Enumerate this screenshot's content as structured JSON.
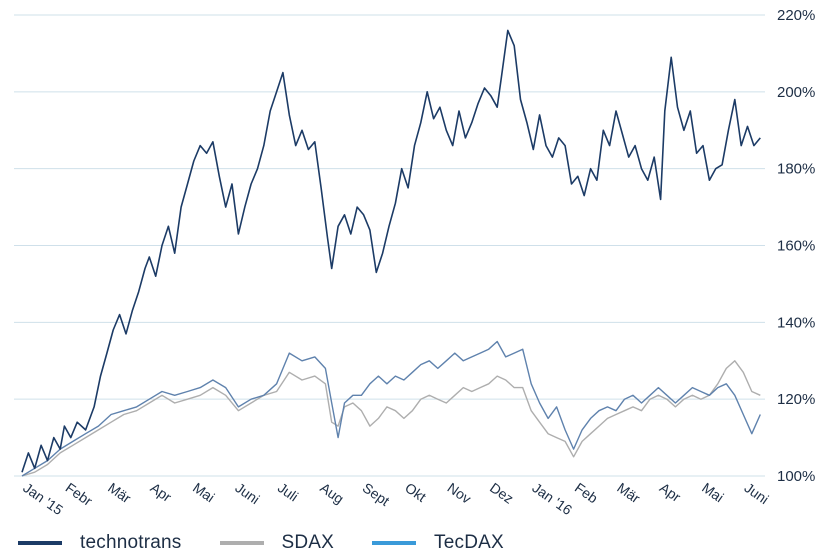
{
  "chart_data": {
    "type": "line",
    "y_axis": {
      "ticks": [
        "100%",
        "120%",
        "140%",
        "160%",
        "180%",
        "200%",
        "220%"
      ],
      "ylim": [
        100,
        220
      ],
      "position": "right",
      "grid": true
    },
    "x_axis": {
      "ticks": [
        "Jan '15",
        "Febr",
        "Mär",
        "Apr",
        "Mai",
        "Juni",
        "Juli",
        "Aug",
        "Sept",
        "Okt",
        "Nov",
        "Dez",
        "Jan '16",
        "Feb",
        "Mär",
        "Apr",
        "Mai",
        "Juni"
      ],
      "label_rotation": "rotated"
    },
    "legend": {
      "placement": "bottom-left"
    },
    "series": [
      {
        "name": "technotrans",
        "color": "#1c3b66",
        "points": [
          [
            0,
            101
          ],
          [
            0.15,
            106
          ],
          [
            0.3,
            102
          ],
          [
            0.45,
            108
          ],
          [
            0.6,
            104
          ],
          [
            0.75,
            110
          ],
          [
            0.9,
            107
          ],
          [
            1.0,
            113
          ],
          [
            1.15,
            110
          ],
          [
            1.3,
            114
          ],
          [
            1.5,
            112
          ],
          [
            1.7,
            118
          ],
          [
            1.85,
            126
          ],
          [
            2.0,
            132
          ],
          [
            2.15,
            138
          ],
          [
            2.3,
            142
          ],
          [
            2.45,
            137
          ],
          [
            2.6,
            143
          ],
          [
            2.75,
            148
          ],
          [
            2.9,
            154
          ],
          [
            3.0,
            157
          ],
          [
            3.15,
            152
          ],
          [
            3.3,
            160
          ],
          [
            3.45,
            165
          ],
          [
            3.6,
            158
          ],
          [
            3.75,
            170
          ],
          [
            3.9,
            176
          ],
          [
            4.05,
            182
          ],
          [
            4.2,
            186
          ],
          [
            4.35,
            184
          ],
          [
            4.5,
            187
          ],
          [
            4.65,
            178
          ],
          [
            4.8,
            170
          ],
          [
            4.95,
            176
          ],
          [
            5.1,
            163
          ],
          [
            5.25,
            170
          ],
          [
            5.4,
            176
          ],
          [
            5.55,
            180
          ],
          [
            5.7,
            186
          ],
          [
            5.85,
            195
          ],
          [
            6.0,
            200
          ],
          [
            6.15,
            205
          ],
          [
            6.3,
            194
          ],
          [
            6.45,
            186
          ],
          [
            6.6,
            190
          ],
          [
            6.75,
            185
          ],
          [
            6.9,
            187
          ],
          [
            7.05,
            175
          ],
          [
            7.2,
            162
          ],
          [
            7.3,
            154
          ],
          [
            7.45,
            165
          ],
          [
            7.6,
            168
          ],
          [
            7.75,
            163
          ],
          [
            7.9,
            170
          ],
          [
            8.05,
            168
          ],
          [
            8.2,
            164
          ],
          [
            8.35,
            153
          ],
          [
            8.5,
            158
          ],
          [
            8.65,
            165
          ],
          [
            8.8,
            171
          ],
          [
            8.95,
            180
          ],
          [
            9.1,
            175
          ],
          [
            9.25,
            186
          ],
          [
            9.4,
            192
          ],
          [
            9.55,
            200
          ],
          [
            9.7,
            193
          ],
          [
            9.85,
            196
          ],
          [
            10.0,
            190
          ],
          [
            10.15,
            186
          ],
          [
            10.3,
            195
          ],
          [
            10.45,
            188
          ],
          [
            10.6,
            192
          ],
          [
            10.75,
            197
          ],
          [
            10.9,
            201
          ],
          [
            11.05,
            199
          ],
          [
            11.2,
            196
          ],
          [
            11.3,
            204
          ],
          [
            11.45,
            216
          ],
          [
            11.6,
            212
          ],
          [
            11.75,
            198
          ],
          [
            11.9,
            192
          ],
          [
            12.05,
            185
          ],
          [
            12.2,
            194
          ],
          [
            12.35,
            186
          ],
          [
            12.5,
            183
          ],
          [
            12.65,
            188
          ],
          [
            12.8,
            186
          ],
          [
            12.95,
            176
          ],
          [
            13.1,
            178
          ],
          [
            13.25,
            173
          ],
          [
            13.4,
            180
          ],
          [
            13.55,
            177
          ],
          [
            13.7,
            190
          ],
          [
            13.85,
            186
          ],
          [
            14.0,
            195
          ],
          [
            14.15,
            189
          ],
          [
            14.3,
            183
          ],
          [
            14.45,
            186
          ],
          [
            14.6,
            180
          ],
          [
            14.75,
            177
          ],
          [
            14.9,
            183
          ],
          [
            15.05,
            172
          ],
          [
            15.15,
            195
          ],
          [
            15.3,
            209
          ],
          [
            15.45,
            196
          ],
          [
            15.6,
            190
          ],
          [
            15.75,
            195
          ],
          [
            15.9,
            184
          ],
          [
            16.05,
            186
          ],
          [
            16.2,
            177
          ],
          [
            16.35,
            180
          ],
          [
            16.5,
            181
          ],
          [
            16.65,
            190
          ],
          [
            16.8,
            198
          ],
          [
            16.95,
            186
          ],
          [
            17.1,
            191
          ],
          [
            17.25,
            186
          ],
          [
            17.4,
            188
          ]
        ]
      },
      {
        "name": "SDAX",
        "color": "#aeaeae",
        "points": [
          [
            0,
            100
          ],
          [
            0.3,
            101
          ],
          [
            0.6,
            103
          ],
          [
            0.9,
            106
          ],
          [
            1.2,
            108
          ],
          [
            1.5,
            110
          ],
          [
            1.8,
            112
          ],
          [
            2.1,
            114
          ],
          [
            2.4,
            116
          ],
          [
            2.7,
            117
          ],
          [
            3.0,
            119
          ],
          [
            3.3,
            121
          ],
          [
            3.6,
            119
          ],
          [
            3.9,
            120
          ],
          [
            4.2,
            121
          ],
          [
            4.5,
            123
          ],
          [
            4.8,
            121
          ],
          [
            5.1,
            117
          ],
          [
            5.4,
            119
          ],
          [
            5.7,
            121
          ],
          [
            6.0,
            122
          ],
          [
            6.3,
            127
          ],
          [
            6.6,
            125
          ],
          [
            6.9,
            126
          ],
          [
            7.15,
            124
          ],
          [
            7.3,
            114
          ],
          [
            7.45,
            113
          ],
          [
            7.6,
            118
          ],
          [
            7.8,
            119
          ],
          [
            8.0,
            117
          ],
          [
            8.2,
            113
          ],
          [
            8.4,
            115
          ],
          [
            8.6,
            118
          ],
          [
            8.8,
            117
          ],
          [
            9.0,
            115
          ],
          [
            9.2,
            117
          ],
          [
            9.4,
            120
          ],
          [
            9.6,
            121
          ],
          [
            9.8,
            120
          ],
          [
            10.0,
            119
          ],
          [
            10.2,
            121
          ],
          [
            10.4,
            123
          ],
          [
            10.6,
            122
          ],
          [
            10.8,
            123
          ],
          [
            11.0,
            124
          ],
          [
            11.2,
            126
          ],
          [
            11.4,
            125
          ],
          [
            11.6,
            123
          ],
          [
            11.8,
            123
          ],
          [
            12.0,
            117
          ],
          [
            12.2,
            114
          ],
          [
            12.4,
            111
          ],
          [
            12.6,
            110
          ],
          [
            12.8,
            109
          ],
          [
            13.0,
            105
          ],
          [
            13.2,
            109
          ],
          [
            13.4,
            111
          ],
          [
            13.6,
            113
          ],
          [
            13.8,
            115
          ],
          [
            14.0,
            116
          ],
          [
            14.2,
            117
          ],
          [
            14.4,
            118
          ],
          [
            14.6,
            117
          ],
          [
            14.8,
            120
          ],
          [
            15.0,
            121
          ],
          [
            15.2,
            120
          ],
          [
            15.4,
            118
          ],
          [
            15.6,
            120
          ],
          [
            15.8,
            121
          ],
          [
            16.0,
            120
          ],
          [
            16.2,
            121
          ],
          [
            16.4,
            124
          ],
          [
            16.6,
            128
          ],
          [
            16.8,
            130
          ],
          [
            17.0,
            127
          ],
          [
            17.2,
            122
          ],
          [
            17.4,
            121
          ]
        ]
      },
      {
        "name": "TecDAX",
        "color": "#5f82ad",
        "points": [
          [
            0,
            100
          ],
          [
            0.3,
            102
          ],
          [
            0.6,
            104
          ],
          [
            0.9,
            107
          ],
          [
            1.2,
            109
          ],
          [
            1.5,
            111
          ],
          [
            1.8,
            113
          ],
          [
            2.1,
            116
          ],
          [
            2.4,
            117
          ],
          [
            2.7,
            118
          ],
          [
            3.0,
            120
          ],
          [
            3.3,
            122
          ],
          [
            3.6,
            121
          ],
          [
            3.9,
            122
          ],
          [
            4.2,
            123
          ],
          [
            4.5,
            125
          ],
          [
            4.8,
            123
          ],
          [
            5.1,
            118
          ],
          [
            5.4,
            120
          ],
          [
            5.7,
            121
          ],
          [
            6.0,
            124
          ],
          [
            6.3,
            132
          ],
          [
            6.6,
            130
          ],
          [
            6.9,
            131
          ],
          [
            7.15,
            128
          ],
          [
            7.3,
            119
          ],
          [
            7.45,
            110
          ],
          [
            7.6,
            119
          ],
          [
            7.8,
            121
          ],
          [
            8.0,
            121
          ],
          [
            8.2,
            124
          ],
          [
            8.4,
            126
          ],
          [
            8.6,
            124
          ],
          [
            8.8,
            126
          ],
          [
            9.0,
            125
          ],
          [
            9.2,
            127
          ],
          [
            9.4,
            129
          ],
          [
            9.6,
            130
          ],
          [
            9.8,
            128
          ],
          [
            10.0,
            130
          ],
          [
            10.2,
            132
          ],
          [
            10.4,
            130
          ],
          [
            10.6,
            131
          ],
          [
            10.8,
            132
          ],
          [
            11.0,
            133
          ],
          [
            11.2,
            135
          ],
          [
            11.4,
            131
          ],
          [
            11.6,
            132
          ],
          [
            11.8,
            133
          ],
          [
            12.0,
            124
          ],
          [
            12.2,
            119
          ],
          [
            12.4,
            115
          ],
          [
            12.6,
            118
          ],
          [
            12.8,
            112
          ],
          [
            13.0,
            107
          ],
          [
            13.2,
            112
          ],
          [
            13.4,
            115
          ],
          [
            13.6,
            117
          ],
          [
            13.8,
            118
          ],
          [
            14.0,
            117
          ],
          [
            14.2,
            120
          ],
          [
            14.4,
            121
          ],
          [
            14.6,
            119
          ],
          [
            14.8,
            121
          ],
          [
            15.0,
            123
          ],
          [
            15.2,
            121
          ],
          [
            15.4,
            119
          ],
          [
            15.6,
            121
          ],
          [
            15.8,
            123
          ],
          [
            16.0,
            122
          ],
          [
            16.2,
            121
          ],
          [
            16.4,
            123
          ],
          [
            16.6,
            124
          ],
          [
            16.8,
            121
          ],
          [
            17.0,
            116
          ],
          [
            17.2,
            111
          ],
          [
            17.4,
            116
          ]
        ]
      }
    ]
  }
}
